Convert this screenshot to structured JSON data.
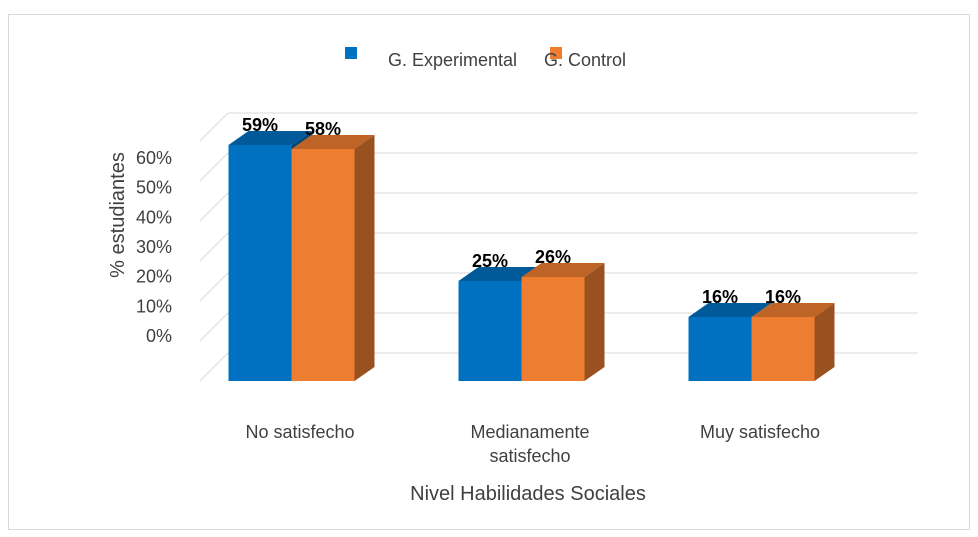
{
  "chart_data": {
    "type": "bar3d",
    "categories": [
      "No satisfecho",
      "Medianamente satisfecho",
      "Muy satisfecho"
    ],
    "series": [
      {
        "name": "G. Experimental",
        "color": "#0070c0",
        "values": [
          59,
          25,
          16
        ],
        "value_labels": [
          "59%",
          "25%",
          "16%"
        ]
      },
      {
        "name": "G. Control",
        "color": "#ed7d31",
        "values": [
          58,
          26,
          16
        ],
        "value_labels": [
          "58%",
          "26%",
          "16%"
        ]
      }
    ],
    "ylabel": "% estudiantes",
    "xlabel": "Nivel Habilidades Sociales",
    "ylim": [
      0,
      60
    ],
    "yticks": [
      {
        "value": 0,
        "label": "0%"
      },
      {
        "value": 10,
        "label": "10%"
      },
      {
        "value": 20,
        "label": "20%"
      },
      {
        "value": 30,
        "label": "30%"
      },
      {
        "value": 40,
        "label": "40%"
      },
      {
        "value": 50,
        "label": "50%"
      },
      {
        "value": 60,
        "label": "60%"
      }
    ],
    "grid": true,
    "legend": "top"
  }
}
